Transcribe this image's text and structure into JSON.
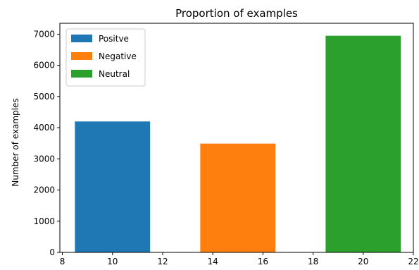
{
  "chart_data": {
    "type": "bar",
    "title": "Proportion of examples",
    "xlabel": "",
    "ylabel": "Number of examples",
    "xlim": [
      7.9,
      22.0
    ],
    "ylim": [
      0,
      7350
    ],
    "x_ticks": [
      8,
      10,
      12,
      14,
      16,
      18,
      20,
      22
    ],
    "y_ticks": [
      0,
      1000,
      2000,
      3000,
      4000,
      5000,
      6000,
      7000
    ],
    "bar_width": 3,
    "series": [
      {
        "name": "Positve",
        "x": 10,
        "value": 4200,
        "color": "#1f77b4"
      },
      {
        "name": "Negative",
        "x": 15,
        "value": 3490,
        "color": "#ff7f0e"
      },
      {
        "name": "Neutral",
        "x": 20,
        "value": 6950,
        "color": "#2ca02c"
      }
    ],
    "legend": "top-left",
    "grid": false
  }
}
